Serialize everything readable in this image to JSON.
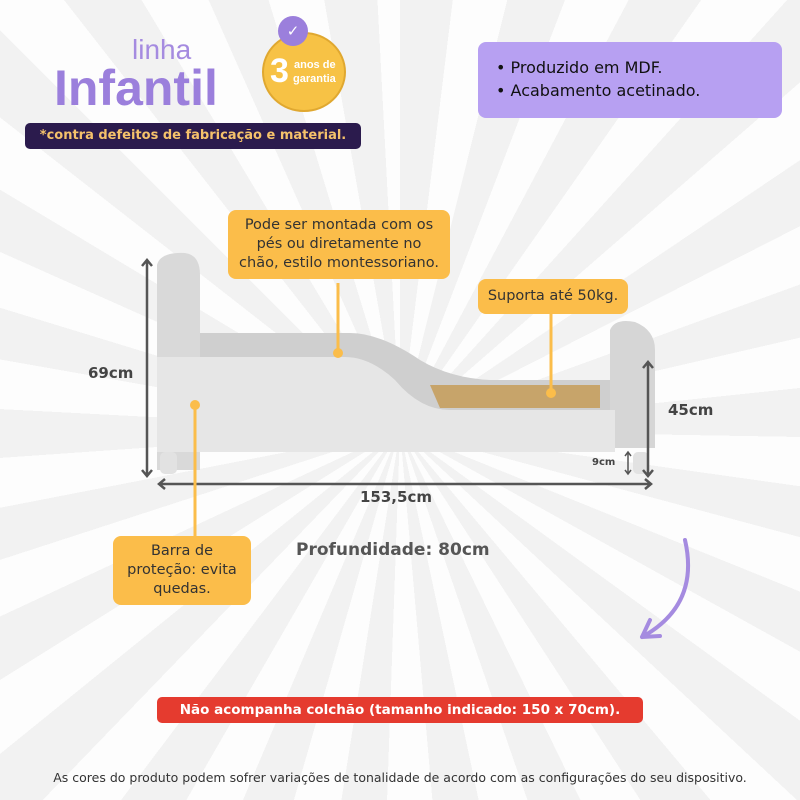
{
  "brand": {
    "linha": "linha",
    "infantil": "Infantil",
    "badge_number": "3",
    "badge_line1": "anos de",
    "badge_line2": "garantia",
    "shield_icon": "shield-check-icon"
  },
  "warranty_note": "*contra defeitos de fabricação e material.",
  "features": [
    "• Produzido em MDF.",
    "• Acabamento acetinado."
  ],
  "callouts": {
    "assembly": "Pode ser montada com os pés ou diretamente no chão, estilo montessoriano.",
    "support": "Suporta até 50kg.",
    "guard": "Barra de proteção: evita quedas."
  },
  "dimensions": {
    "height": "69cm",
    "side_height": "45cm",
    "leg": "9cm",
    "length": "153,5cm",
    "depth": "Profundidade: 80cm"
  },
  "mattress_notice": "Não acompanha colchão (tamanho indicado: 150 x 70cm).",
  "disclaimer": "As cores do produto podem sofrer variações de tonalidade de acordo com as configurações do seu dispositivo.",
  "colors": {
    "purple": "#9b7fdc",
    "light_purple": "#b7a0f2",
    "yellow": "#fbbd4a",
    "dark": "#2b1b4d",
    "red": "#e53b2f"
  }
}
